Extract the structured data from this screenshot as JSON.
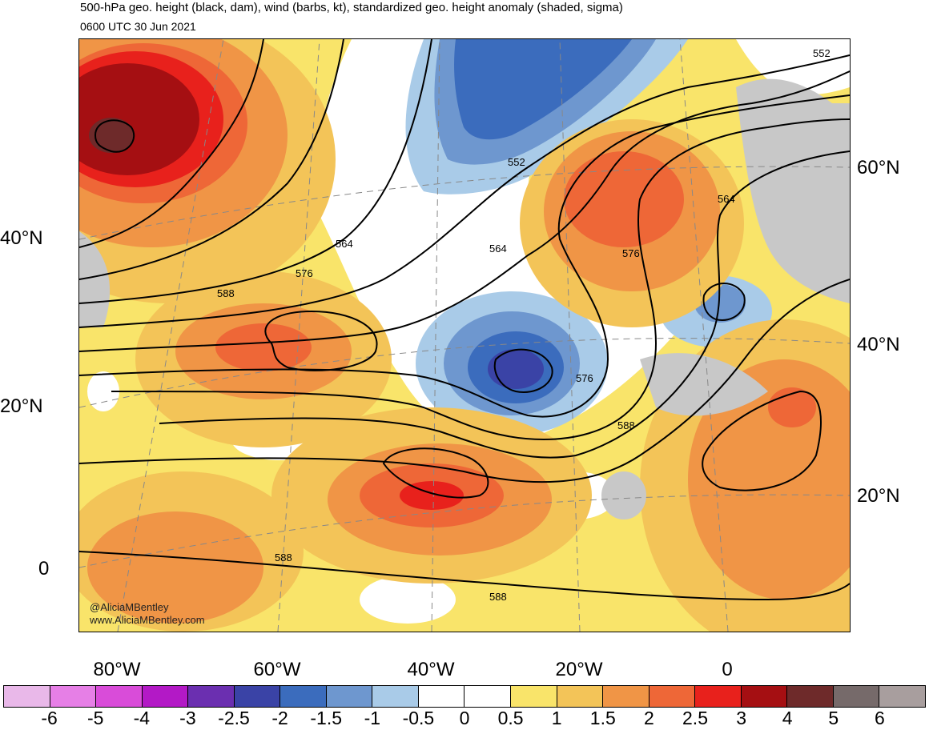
{
  "header": {
    "title": "500-hPa geo. height (black, dam), wind (barbs, kt), standardized geo. height anomaly (shaded, sigma)",
    "valid_time": "0600 UTC 30 Jun 2021"
  },
  "map": {
    "lat_labels_left": [
      "40°N",
      "20°N",
      "0"
    ],
    "lat_labels_right": [
      "60°N",
      "40°N",
      "20°N"
    ],
    "lon_labels": [
      "80°W",
      "60°W",
      "40°W",
      "20°W",
      "0"
    ],
    "contour_labels": [
      "552",
      "552",
      "564",
      "564",
      "564",
      "576",
      "576",
      "576",
      "588",
      "588",
      "588",
      "588"
    ],
    "credit_handle": "@AliciaMBentley",
    "credit_url": "www.AliciaMBentley.com"
  },
  "colorbar": {
    "colors": [
      "#e9b8e9",
      "#e67fe6",
      "#d94cd9",
      "#b319c6",
      "#6b2fb0",
      "#3a43a6",
      "#3b6cbd",
      "#6e97cf",
      "#a9cbe8",
      "#ffffff",
      "#ffffff",
      "#f9e46a",
      "#f3c458",
      "#f09546",
      "#ee6737",
      "#e8211c",
      "#a50f12",
      "#6e2a2a",
      "#766a6a",
      "#a89e9e"
    ],
    "tick_labels": [
      "-6",
      "-5",
      "-4",
      "-3",
      "-2.5",
      "-2",
      "-1.5",
      "-1",
      "-0.5",
      "0",
      "0.5",
      "1",
      "1.5",
      "2",
      "2.5",
      "3",
      "4",
      "5",
      "6"
    ]
  }
}
